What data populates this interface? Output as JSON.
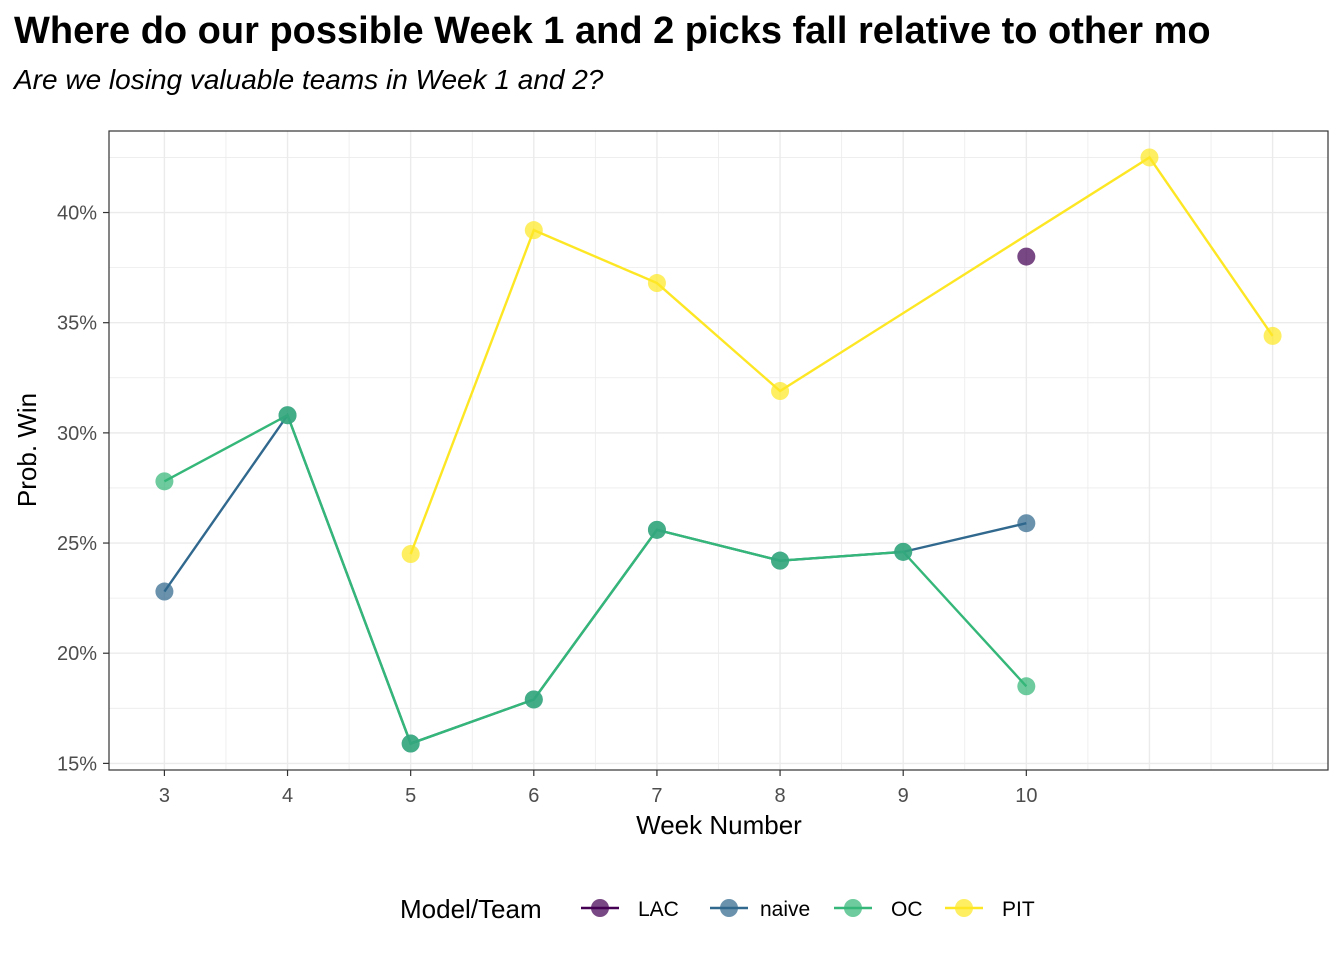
{
  "chart_data": {
    "type": "line",
    "title": "Where do our possible Week 1 and 2 picks fall relative to other mo",
    "subtitle": "Are we losing valuable teams in Week 1 and 2?",
    "xlabel": "Week Number",
    "ylabel": "Prob. Win",
    "xlim": [
      2.55,
      12.45
    ],
    "ylim": [
      0.147,
      0.437
    ],
    "x_ticks": [
      3,
      4,
      5,
      6,
      7,
      8,
      9,
      10
    ],
    "y_ticks": [
      0.15,
      0.2,
      0.25,
      0.3,
      0.35,
      0.4
    ],
    "y_tick_labels": [
      "15%",
      "20%",
      "25%",
      "30%",
      "35%",
      "40%"
    ],
    "grid": true,
    "legend": {
      "title": "Model/Team",
      "position": "bottom",
      "entries": [
        "LAC",
        "naive",
        "OC",
        "PIT"
      ]
    },
    "series": [
      {
        "name": "LAC",
        "color": "#440154",
        "points": [
          [
            10,
            0.38
          ]
        ]
      },
      {
        "name": "naive",
        "color": "#31688E",
        "points": [
          [
            3,
            0.228
          ],
          [
            4,
            0.308
          ],
          [
            5,
            0.159
          ],
          [
            6,
            0.179
          ],
          [
            7,
            0.256
          ],
          [
            8,
            0.242
          ],
          [
            9,
            0.246
          ],
          [
            10,
            0.259
          ]
        ]
      },
      {
        "name": "OC",
        "color": "#35B779",
        "points": [
          [
            3,
            0.278
          ],
          [
            4,
            0.308
          ],
          [
            5,
            0.159
          ],
          [
            6,
            0.179
          ],
          [
            7,
            0.256
          ],
          [
            8,
            0.242
          ],
          [
            9,
            0.246
          ],
          [
            10,
            0.185
          ]
        ]
      },
      {
        "name": "PIT",
        "color": "#FDE725",
        "points": [
          [
            5,
            0.245
          ],
          [
            6,
            0.392
          ],
          [
            7,
            0.368
          ],
          [
            8,
            0.319
          ],
          [
            11,
            0.425
          ],
          [
            12,
            0.344
          ]
        ]
      }
    ]
  }
}
